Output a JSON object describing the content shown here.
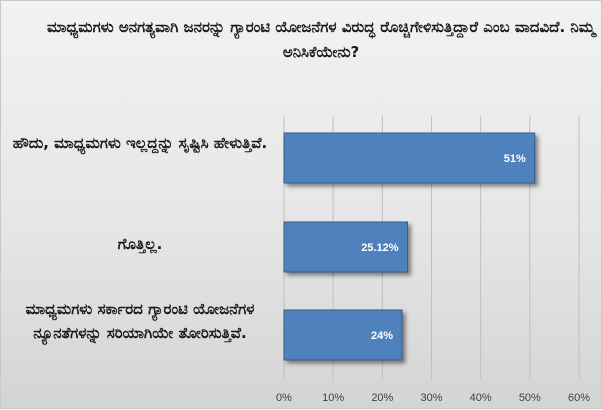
{
  "chart_data": {
    "type": "bar",
    "orientation": "horizontal",
    "title": "ಮಾಧ್ಯಮಗಳು ಅನಗತ್ಯವಾಗಿ ಜನರನ್ನು ಗ್ಯಾರಂಟಿ ಯೋಜನೆಗಳ ವಿರುದ್ಧ ರೊಚ್ಚಿಗೇಳಿಸುತ್ತಿದ್ದಾರೆ ಎಂಬ ವಾದವಿದೆ. ನಿಮ್ಮ ಅನಿಸಿಕೆಯೇನು?",
    "categories": [
      "ಹೌದು, ಮಾಧ್ಯಮಗಳು ಇಲ್ಲದ್ದನ್ನು ಸೃಷ್ಟಿಸಿ ಹೇಳುತ್ತಿವೆ.",
      "ಗೊತ್ತಿಲ್ಲ.",
      "ಮಾಧ್ಯಮಗಳು ಸರ್ಕಾರದ ಗ್ಯಾರಂಟಿ ಯೋಜನೆಗಳ ನ್ಯೂನತೆಗಳನ್ನು ಸರಿಯಾಗಿಯೇ ತೋರಿಸುತ್ತಿವೆ."
    ],
    "values": [
      51,
      25.12,
      24
    ],
    "value_labels": [
      "51%",
      "25.12%",
      "24%"
    ],
    "xlim": [
      0,
      60
    ],
    "x_ticks": [
      "0%",
      "10%",
      "20%",
      "30%",
      "40%",
      "50%",
      "60%"
    ],
    "xlabel": "",
    "ylabel": "",
    "grid": true,
    "legend": "none",
    "bar_color": "#4f81bd"
  }
}
